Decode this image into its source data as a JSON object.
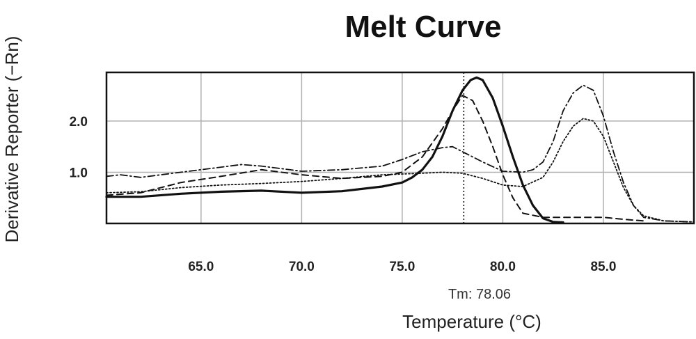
{
  "chart_data": {
    "type": "line",
    "title": "Melt Curve",
    "xlabel": "Temperature (°C)",
    "ylabel": "Derivative Reporter (−Rn)",
    "xlim": [
      60.3,
      89.5
    ],
    "ylim": [
      0,
      2.95
    ],
    "x_ticks": [
      "65.0",
      "70.0",
      "75.0",
      "80.0",
      "85.0"
    ],
    "y_ticks": [
      "1.0",
      "2.0"
    ],
    "grid": true,
    "marker": {
      "x": 78.06,
      "label": "Tm: 78.06"
    },
    "series": [
      {
        "style": "solid",
        "points": [
          [
            60.3,
            0.52
          ],
          [
            62,
            0.52
          ],
          [
            64,
            0.58
          ],
          [
            66,
            0.62
          ],
          [
            68,
            0.64
          ],
          [
            70,
            0.6
          ],
          [
            72,
            0.63
          ],
          [
            74,
            0.72
          ],
          [
            75,
            0.8
          ],
          [
            75.5,
            0.9
          ],
          [
            76,
            1.05
          ],
          [
            76.5,
            1.3
          ],
          [
            77,
            1.7
          ],
          [
            77.5,
            2.2
          ],
          [
            78,
            2.6
          ],
          [
            78.4,
            2.8
          ],
          [
            78.7,
            2.85
          ],
          [
            79,
            2.8
          ],
          [
            79.5,
            2.45
          ],
          [
            80,
            1.9
          ],
          [
            80.5,
            1.3
          ],
          [
            81,
            0.75
          ],
          [
            81.5,
            0.35
          ],
          [
            82,
            0.1
          ],
          [
            82.5,
            0.03
          ],
          [
            83,
            0.02
          ]
        ]
      },
      {
        "style": "dashed",
        "points": [
          [
            60.3,
            0.55
          ],
          [
            62,
            0.6
          ],
          [
            64,
            0.8
          ],
          [
            66,
            0.92
          ],
          [
            68,
            1.05
          ],
          [
            70,
            0.95
          ],
          [
            72,
            0.88
          ],
          [
            74,
            0.92
          ],
          [
            75,
            1.0
          ],
          [
            76,
            1.3
          ],
          [
            77,
            1.85
          ],
          [
            77.5,
            2.2
          ],
          [
            78,
            2.5
          ],
          [
            78.5,
            2.4
          ],
          [
            79,
            2.0
          ],
          [
            79.5,
            1.5
          ],
          [
            80,
            0.95
          ],
          [
            80.5,
            0.5
          ],
          [
            81,
            0.2
          ],
          [
            82,
            0.12
          ],
          [
            84,
            0.12
          ],
          [
            85,
            0.12
          ],
          [
            86,
            0.08
          ],
          [
            87,
            0.05
          ]
        ]
      },
      {
        "style": "dashdot",
        "points": [
          [
            60.3,
            0.92
          ],
          [
            61,
            0.95
          ],
          [
            62,
            0.9
          ],
          [
            63,
            0.95
          ],
          [
            65,
            1.05
          ],
          [
            67,
            1.15
          ],
          [
            68,
            1.12
          ],
          [
            70,
            1.02
          ],
          [
            72,
            1.05
          ],
          [
            74,
            1.12
          ],
          [
            75,
            1.25
          ],
          [
            76,
            1.4
          ],
          [
            77,
            1.48
          ],
          [
            77.5,
            1.5
          ],
          [
            78,
            1.4
          ],
          [
            79,
            1.2
          ],
          [
            80,
            1.02
          ],
          [
            81,
            1.0
          ],
          [
            81.5,
            1.05
          ],
          [
            82,
            1.2
          ],
          [
            82.5,
            1.6
          ],
          [
            83,
            2.2
          ],
          [
            83.5,
            2.55
          ],
          [
            84,
            2.7
          ],
          [
            84.5,
            2.6
          ],
          [
            85,
            2.1
          ],
          [
            85.5,
            1.4
          ],
          [
            86,
            0.8
          ],
          [
            86.5,
            0.35
          ],
          [
            87,
            0.12
          ],
          [
            88,
            0.05
          ],
          [
            89.5,
            0.03
          ]
        ]
      },
      {
        "style": "dotted",
        "points": [
          [
            60.3,
            0.6
          ],
          [
            62,
            0.62
          ],
          [
            64,
            0.7
          ],
          [
            66,
            0.75
          ],
          [
            68,
            0.78
          ],
          [
            70,
            0.82
          ],
          [
            72,
            0.88
          ],
          [
            74,
            0.95
          ],
          [
            76,
            0.98
          ],
          [
            77,
            1.0
          ],
          [
            78,
            0.98
          ],
          [
            79,
            0.88
          ],
          [
            80,
            0.75
          ],
          [
            81,
            0.72
          ],
          [
            82,
            0.9
          ],
          [
            82.5,
            1.2
          ],
          [
            83,
            1.6
          ],
          [
            83.5,
            1.9
          ],
          [
            84,
            2.05
          ],
          [
            84.5,
            2.0
          ],
          [
            85,
            1.7
          ],
          [
            85.5,
            1.2
          ],
          [
            86,
            0.7
          ],
          [
            86.5,
            0.35
          ],
          [
            87,
            0.15
          ],
          [
            88,
            0.05
          ],
          [
            89.5,
            0.03
          ]
        ]
      }
    ]
  }
}
